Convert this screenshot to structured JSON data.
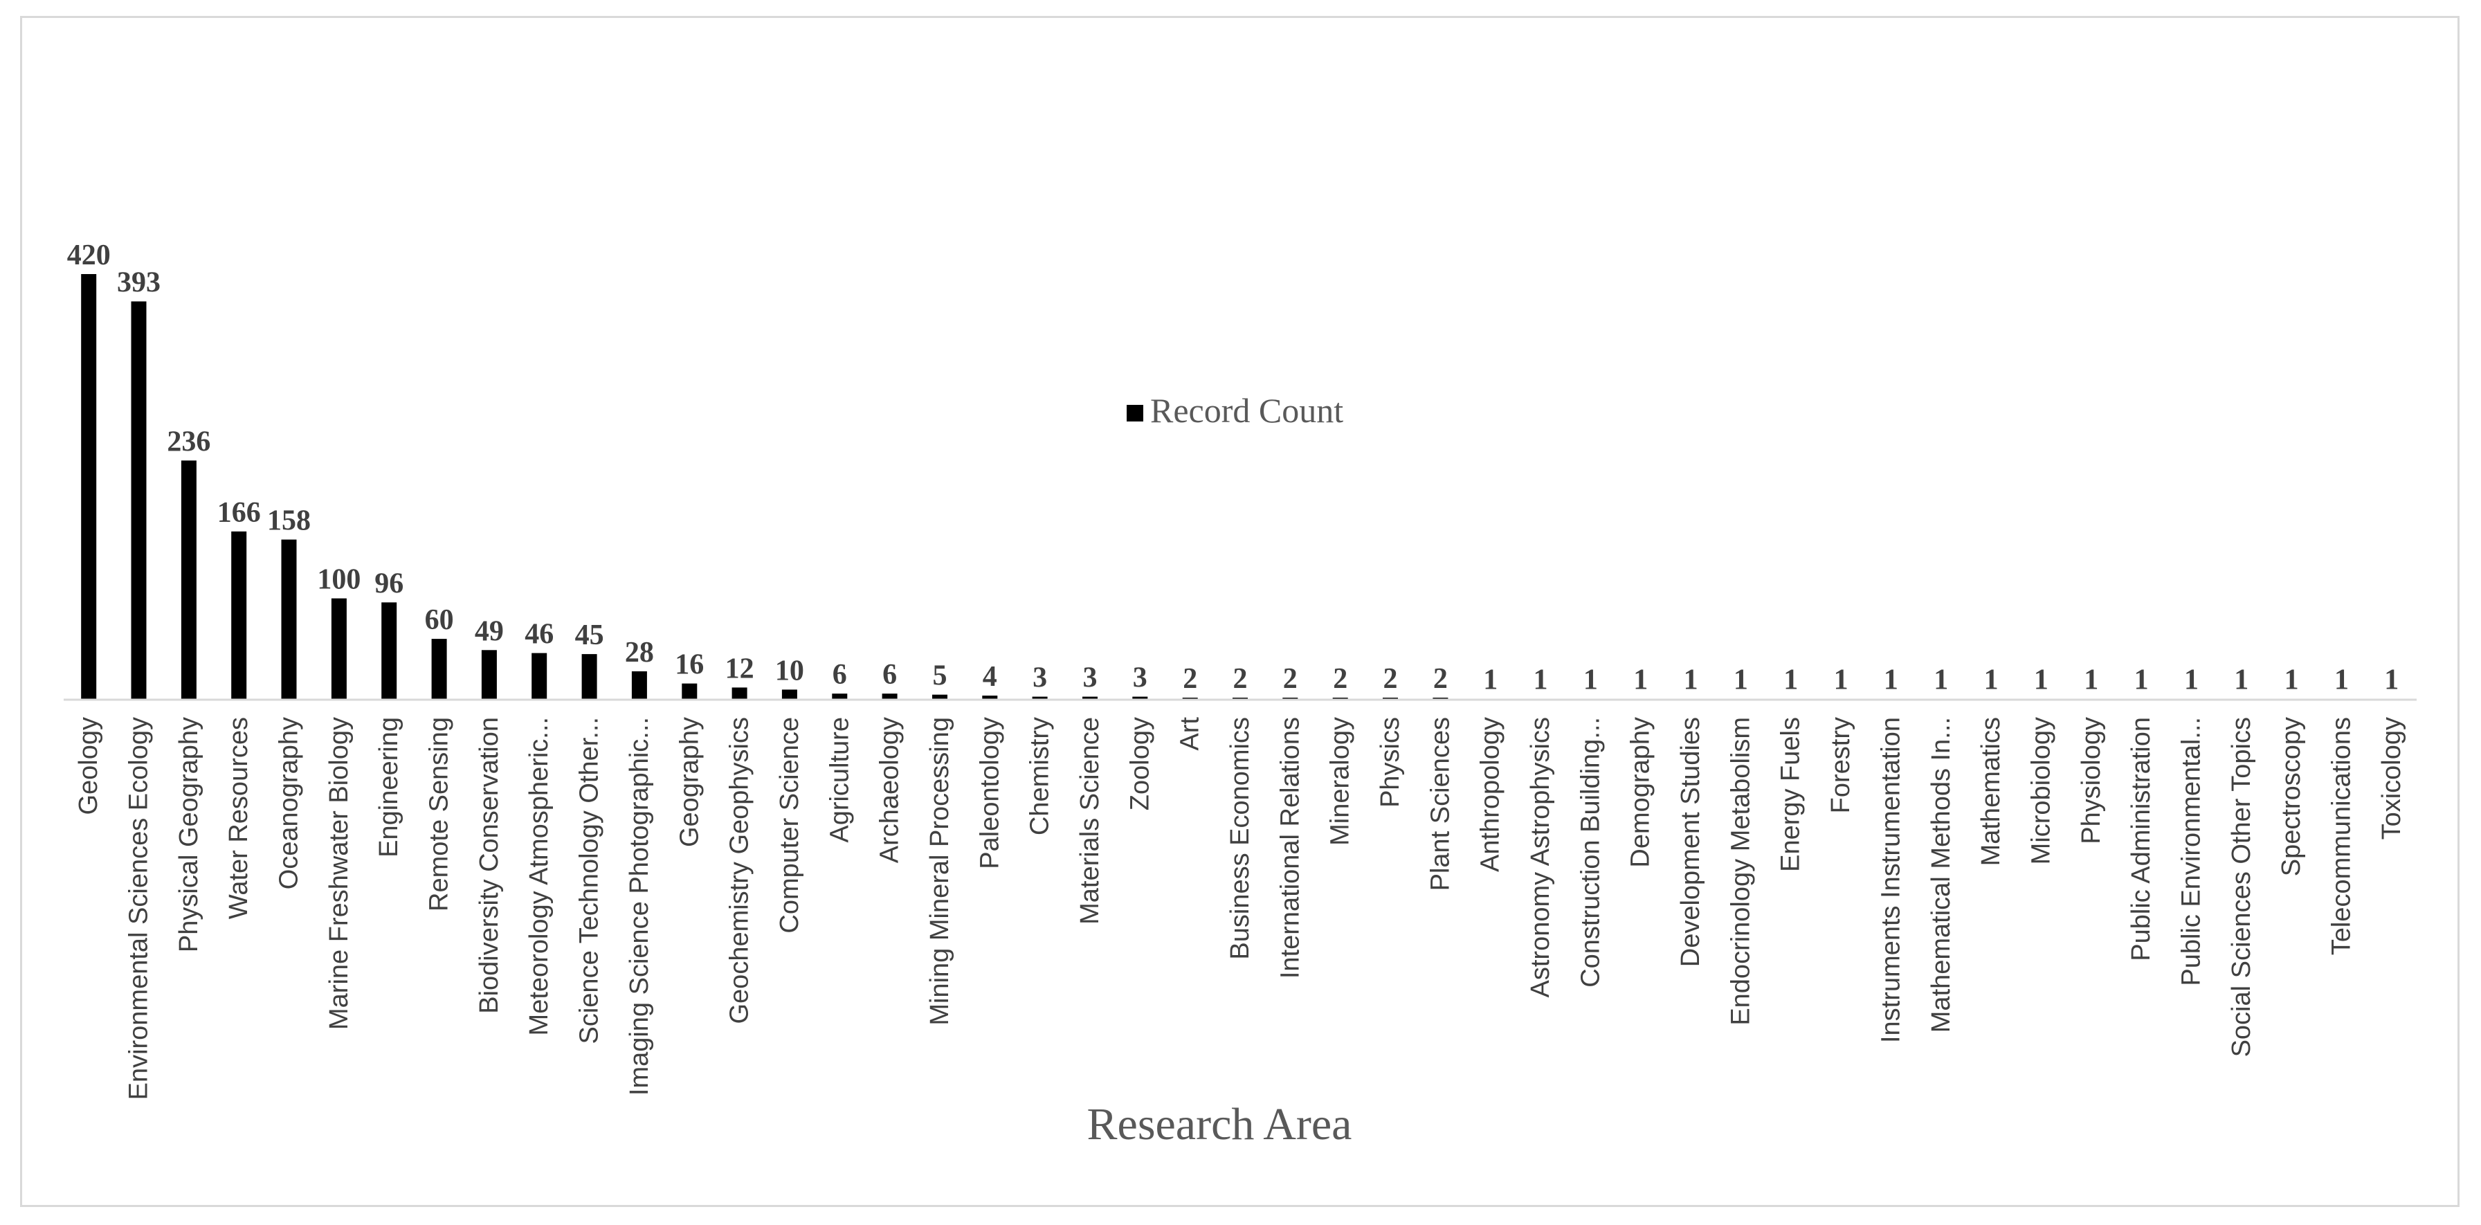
{
  "chart_data": {
    "type": "bar",
    "xlabel": "Research Area",
    "ylabel": "",
    "legend": {
      "label": "Record Count",
      "placement": "center",
      "color": "#000000"
    },
    "bar_color": "#000000",
    "grid": false,
    "ylim": [
      0,
      420
    ],
    "categories": [
      "Geology",
      "Environmental Sciences Ecology",
      "Physical Geography",
      "Water Resources",
      "Oceanography",
      "Marine Freshwater Biology",
      "Engineering",
      "Remote Sensing",
      "Biodiversity Conservation",
      "Meteorology Atmospheric...",
      "Science Technology Other...",
      "Imaging Science Photographic...",
      "Geography",
      "Geochemistry Geophysics",
      "Computer Science",
      "Agriculture",
      "Archaeology",
      "Mining Mineral Processing",
      "Paleontology",
      "Chemistry",
      "Materials Science",
      "Zoology",
      "Art",
      "Business Economics",
      "International Relations",
      "Mineralogy",
      "Physics",
      "Plant Sciences",
      "Anthropology",
      "Astronomy Astrophysics",
      "Construction Building...",
      "Demography",
      "Development Studies",
      "Endocrinology Metabolism",
      "Energy Fuels",
      "Forestry",
      "Instruments Instrumentation",
      "Mathematical Methods In...",
      "Mathematics",
      "Microbiology",
      "Physiology",
      "Public Administration",
      "Public Environmental...",
      "Social Sciences Other Topics",
      "Spectroscopy",
      "Telecommunications",
      "Toxicology"
    ],
    "values": [
      420,
      393,
      236,
      166,
      158,
      100,
      96,
      60,
      49,
      46,
      45,
      28,
      16,
      12,
      10,
      6,
      6,
      5,
      4,
      3,
      3,
      3,
      2,
      2,
      2,
      2,
      2,
      2,
      1,
      1,
      1,
      1,
      1,
      1,
      1,
      1,
      1,
      1,
      1,
      1,
      1,
      1,
      1,
      1,
      1,
      1,
      1
    ]
  }
}
